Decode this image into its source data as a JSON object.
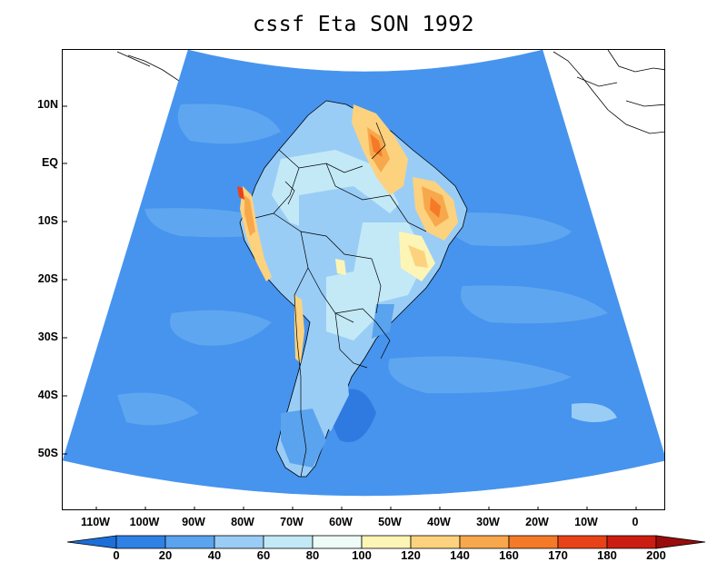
{
  "title": "cssf Eta SON 1992",
  "lat_labels": [
    {
      "text": "10N",
      "lat": 10
    },
    {
      "text": "EQ",
      "lat": 0
    },
    {
      "text": "10S",
      "lat": -10
    },
    {
      "text": "20S",
      "lat": -20
    },
    {
      "text": "30S",
      "lat": -30
    },
    {
      "text": "40S",
      "lat": -40
    },
    {
      "text": "50S",
      "lat": -50
    }
  ],
  "lon_labels": [
    {
      "text": "110W",
      "lon": -110
    },
    {
      "text": "100W",
      "lon": -100
    },
    {
      "text": "90W",
      "lon": -90
    },
    {
      "text": "80W",
      "lon": -80
    },
    {
      "text": "70W",
      "lon": -70
    },
    {
      "text": "60W",
      "lon": -60
    },
    {
      "text": "50W",
      "lon": -50
    },
    {
      "text": "40W",
      "lon": -40
    },
    {
      "text": "30W",
      "lon": -30
    },
    {
      "text": "20W",
      "lon": -20
    },
    {
      "text": "10W",
      "lon": -10
    },
    {
      "text": "0",
      "lon": 0
    }
  ],
  "colorbar": {
    "labels": [
      "0",
      "20",
      "40",
      "60",
      "80",
      "100",
      "120",
      "140",
      "160",
      "170",
      "180",
      "200"
    ],
    "colors": [
      "#1c6fd8",
      "#2e82e6",
      "#5aa3ee",
      "#9acdf6",
      "#c3e9f7",
      "#eefcf7",
      "#fdf5b6",
      "#fdd27e",
      "#f8a84c",
      "#f57a27",
      "#e84318",
      "#cc1d12",
      "#9a0c0c"
    ]
  },
  "colors": {
    "ocean": "#4694ee",
    "ocean_light": "#5fa6f0",
    "ocean_dark": "#2f7ae0",
    "border": "#000000"
  }
}
